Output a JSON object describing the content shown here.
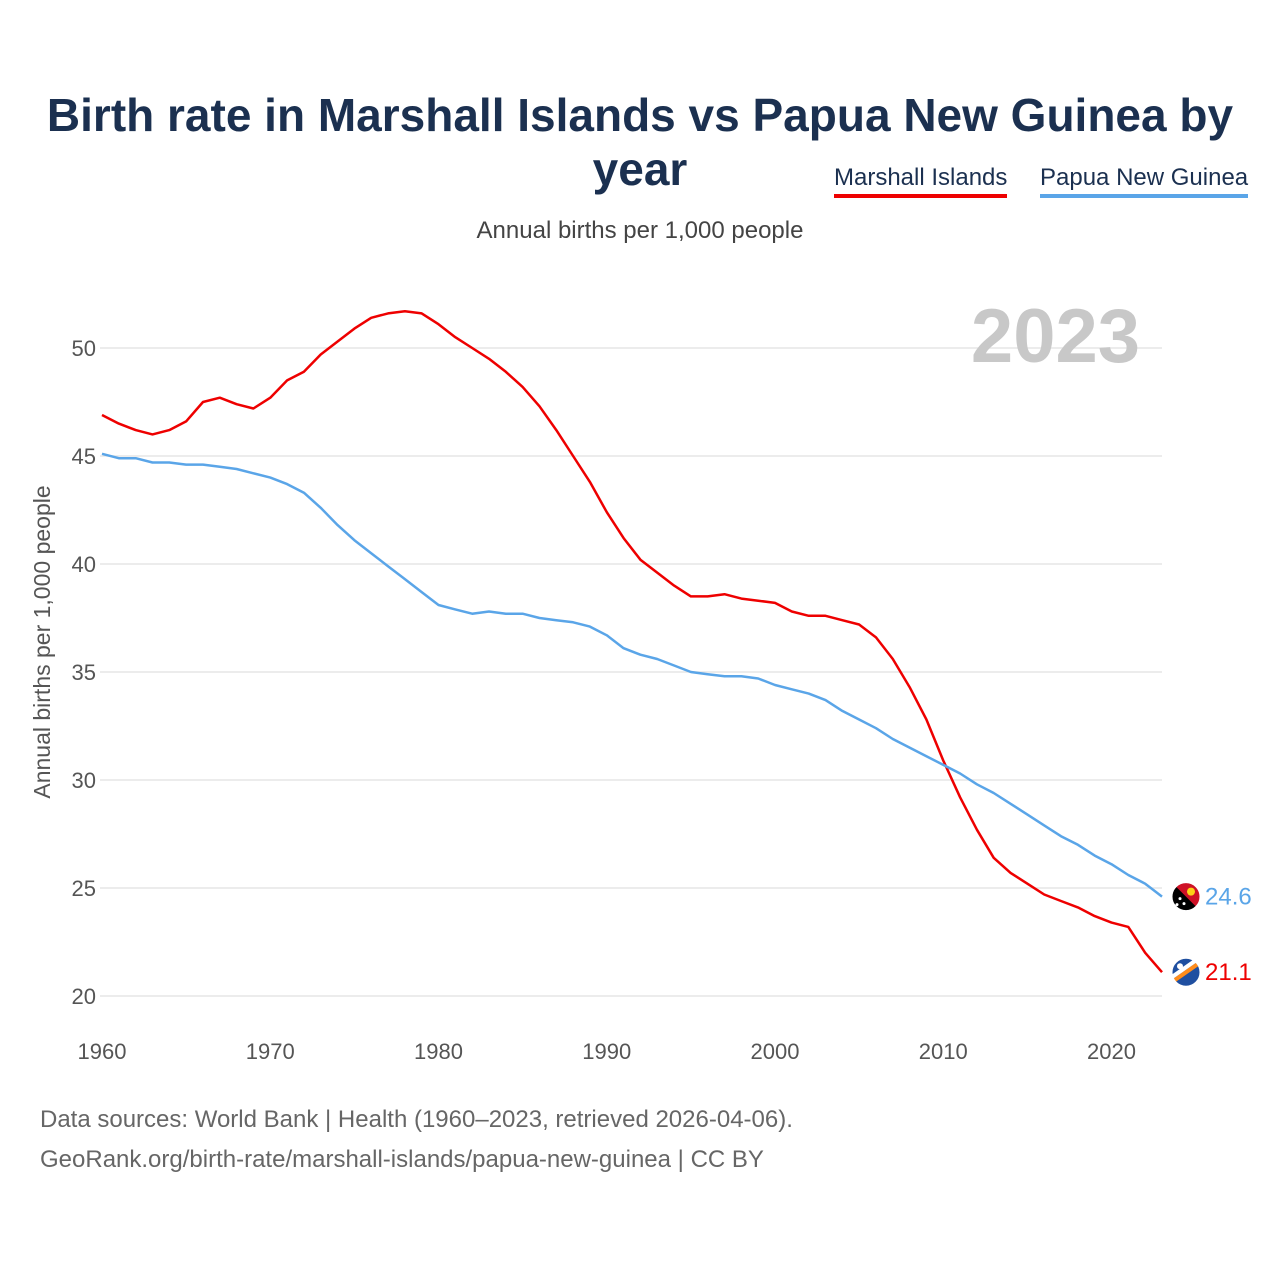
{
  "title": "Birth rate in Marshall Islands vs Papua New Guinea by year",
  "subtitle": "Annual births per 1,000 people",
  "legend": {
    "marshall": "Marshall Islands",
    "png": "Papua New Guinea"
  },
  "year_label": "2023",
  "source_line1": "Data sources: World Bank | Health (1960–2023, retrieved 2026-04-06).",
  "source_line2": "GeoRank.org/birth-rate/marshall-islands/papua-new-guinea | CC BY",
  "chart_data": {
    "type": "line",
    "title": "Birth rate in Marshall Islands vs Papua New Guinea by year",
    "xlabel": "",
    "ylabel": "Annual births per 1,000 people",
    "xlim": [
      1960,
      2023
    ],
    "ylim": [
      20,
      52
    ],
    "x_ticks": [
      1960,
      1970,
      1980,
      1990,
      2000,
      2010,
      2020
    ],
    "y_ticks": [
      20,
      25,
      30,
      35,
      40,
      45,
      50
    ],
    "grid": true,
    "legend_position": "top-right",
    "x": [
      1960,
      1961,
      1962,
      1963,
      1964,
      1965,
      1966,
      1967,
      1968,
      1969,
      1970,
      1971,
      1972,
      1973,
      1974,
      1975,
      1976,
      1977,
      1978,
      1979,
      1980,
      1981,
      1982,
      1983,
      1984,
      1985,
      1986,
      1987,
      1988,
      1989,
      1990,
      1991,
      1992,
      1993,
      1994,
      1995,
      1996,
      1997,
      1998,
      1999,
      2000,
      2001,
      2002,
      2003,
      2004,
      2005,
      2006,
      2007,
      2008,
      2009,
      2010,
      2011,
      2012,
      2013,
      2014,
      2015,
      2016,
      2017,
      2018,
      2019,
      2020,
      2021,
      2022,
      2023
    ],
    "series": [
      {
        "name": "Marshall Islands",
        "color": "#ee0000",
        "end_label": "21.1",
        "values": [
          46.9,
          46.5,
          46.2,
          46.0,
          46.2,
          46.6,
          47.5,
          47.7,
          47.4,
          47.2,
          47.7,
          48.5,
          48.9,
          49.7,
          50.3,
          50.9,
          51.4,
          51.6,
          51.7,
          51.6,
          51.1,
          50.5,
          50.0,
          49.5,
          48.9,
          48.2,
          47.3,
          46.2,
          45.0,
          43.8,
          42.4,
          41.2,
          40.2,
          39.6,
          39.0,
          38.5,
          38.5,
          38.6,
          38.4,
          38.3,
          38.2,
          37.8,
          37.6,
          37.6,
          37.4,
          37.2,
          36.6,
          35.6,
          34.3,
          32.8,
          30.9,
          29.2,
          27.7,
          26.4,
          25.7,
          25.2,
          24.7,
          24.4,
          24.1,
          23.7,
          23.4,
          23.2,
          22.0,
          21.1
        ]
      },
      {
        "name": "Papua New Guinea",
        "color": "#5aa5e8",
        "end_label": "24.6",
        "values": [
          45.1,
          44.9,
          44.9,
          44.7,
          44.7,
          44.6,
          44.6,
          44.5,
          44.4,
          44.2,
          44.0,
          43.7,
          43.3,
          42.6,
          41.8,
          41.1,
          40.5,
          39.9,
          39.3,
          38.7,
          38.1,
          37.9,
          37.7,
          37.8,
          37.7,
          37.7,
          37.5,
          37.4,
          37.3,
          37.1,
          36.7,
          36.1,
          35.8,
          35.6,
          35.3,
          35.0,
          34.9,
          34.8,
          34.8,
          34.7,
          34.4,
          34.2,
          34.0,
          33.7,
          33.2,
          32.8,
          32.4,
          31.9,
          31.5,
          31.1,
          30.7,
          30.3,
          29.8,
          29.4,
          28.9,
          28.4,
          27.9,
          27.4,
          27.0,
          26.5,
          26.1,
          25.6,
          25.2,
          24.6
        ]
      }
    ]
  }
}
